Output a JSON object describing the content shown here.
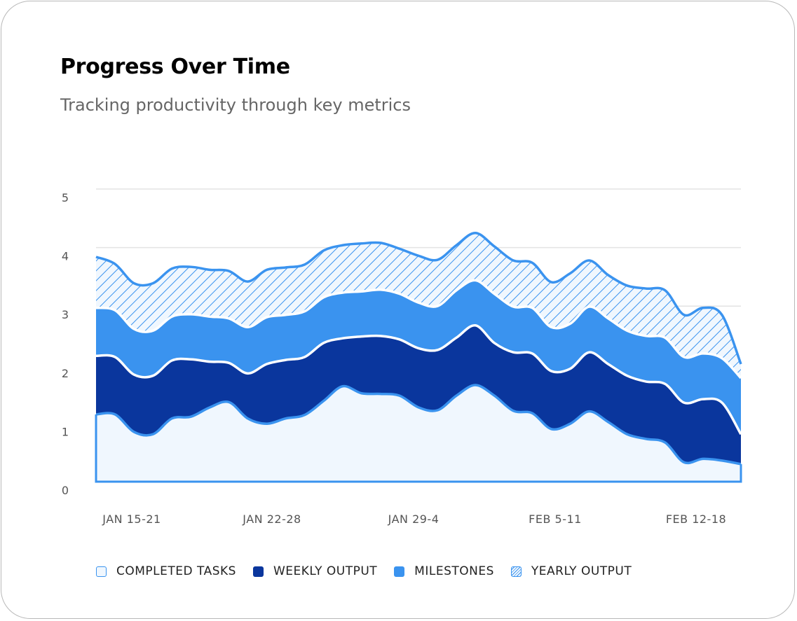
{
  "title": "Progress Over Time",
  "subtitle": "Tracking productivity through key metrics",
  "chart_data": {
    "type": "area",
    "stacked": true,
    "title": "Progress Over Time",
    "subtitle": "Tracking productivity through key metrics",
    "xlabel": "",
    "ylabel": "",
    "ylim": [
      0,
      5
    ],
    "yticks": [
      "0",
      "1",
      "2",
      "3",
      "4",
      "5"
    ],
    "xticks": [
      "JAN 15-21",
      "JAN 22-28",
      "JAN 29-4",
      "FEB 5-11",
      "FEB 12-18"
    ],
    "grid": true,
    "legend_position": "bottom",
    "series": [
      {
        "name": "COMPLETED TASKS",
        "color": "#f0f7fe",
        "stroke": "#3a93ef",
        "values": [
          1.15,
          1.15,
          0.85,
          0.81,
          1.08,
          1.11,
          1.27,
          1.36,
          1.08,
          0.99,
          1.08,
          1.14,
          1.38,
          1.63,
          1.51,
          1.5,
          1.47,
          1.27,
          1.22,
          1.47,
          1.65,
          1.47,
          1.21,
          1.17,
          0.9,
          0.99,
          1.2,
          1.02,
          0.81,
          0.73,
          0.67,
          0.33,
          0.39,
          0.36,
          0.3
        ]
      },
      {
        "name": "WEEKLY OUTPUT",
        "color": "#0a369d",
        "stroke": "#ffffff",
        "values": [
          1.0,
          0.98,
          0.98,
          1.0,
          0.99,
          0.98,
          0.78,
          0.67,
          0.77,
          1.02,
          1.0,
          0.99,
          0.99,
          0.82,
          0.97,
          0.99,
          0.96,
          1.01,
          1.03,
          0.99,
          1.02,
          0.9,
          1.0,
          1.02,
          0.99,
          0.94,
          1.01,
          0.99,
          1.0,
          0.98,
          1.0,
          1.02,
          1.02,
          0.99,
          0.51
        ]
      },
      {
        "name": "MILESTONES",
        "color": "#3a93ef",
        "stroke": "#ffffff",
        "values": [
          0.82,
          0.8,
          0.78,
          0.77,
          0.75,
          0.77,
          0.77,
          0.76,
          0.79,
          0.8,
          0.77,
          0.78,
          0.78,
          0.78,
          0.77,
          0.79,
          0.78,
          0.78,
          0.75,
          0.81,
          0.77,
          0.84,
          0.78,
          0.78,
          0.75,
          0.77,
          0.78,
          0.78,
          0.77,
          0.78,
          0.79,
          0.78,
          0.78,
          0.76,
          0.96
        ]
      },
      {
        "name": "YEARLY OUTPUT",
        "color": "hatched #3a93ef",
        "stroke": "#3a93ef",
        "values": [
          0.87,
          0.79,
          0.78,
          0.81,
          0.82,
          0.81,
          0.8,
          0.81,
          0.78,
          0.81,
          0.81,
          0.8,
          0.8,
          0.81,
          0.82,
          0.8,
          0.77,
          0.8,
          0.79,
          0.77,
          0.81,
          0.81,
          0.79,
          0.77,
          0.77,
          0.86,
          0.79,
          0.74,
          0.77,
          0.81,
          0.81,
          0.72,
          0.78,
          0.74,
          0.24
        ]
      }
    ]
  }
}
